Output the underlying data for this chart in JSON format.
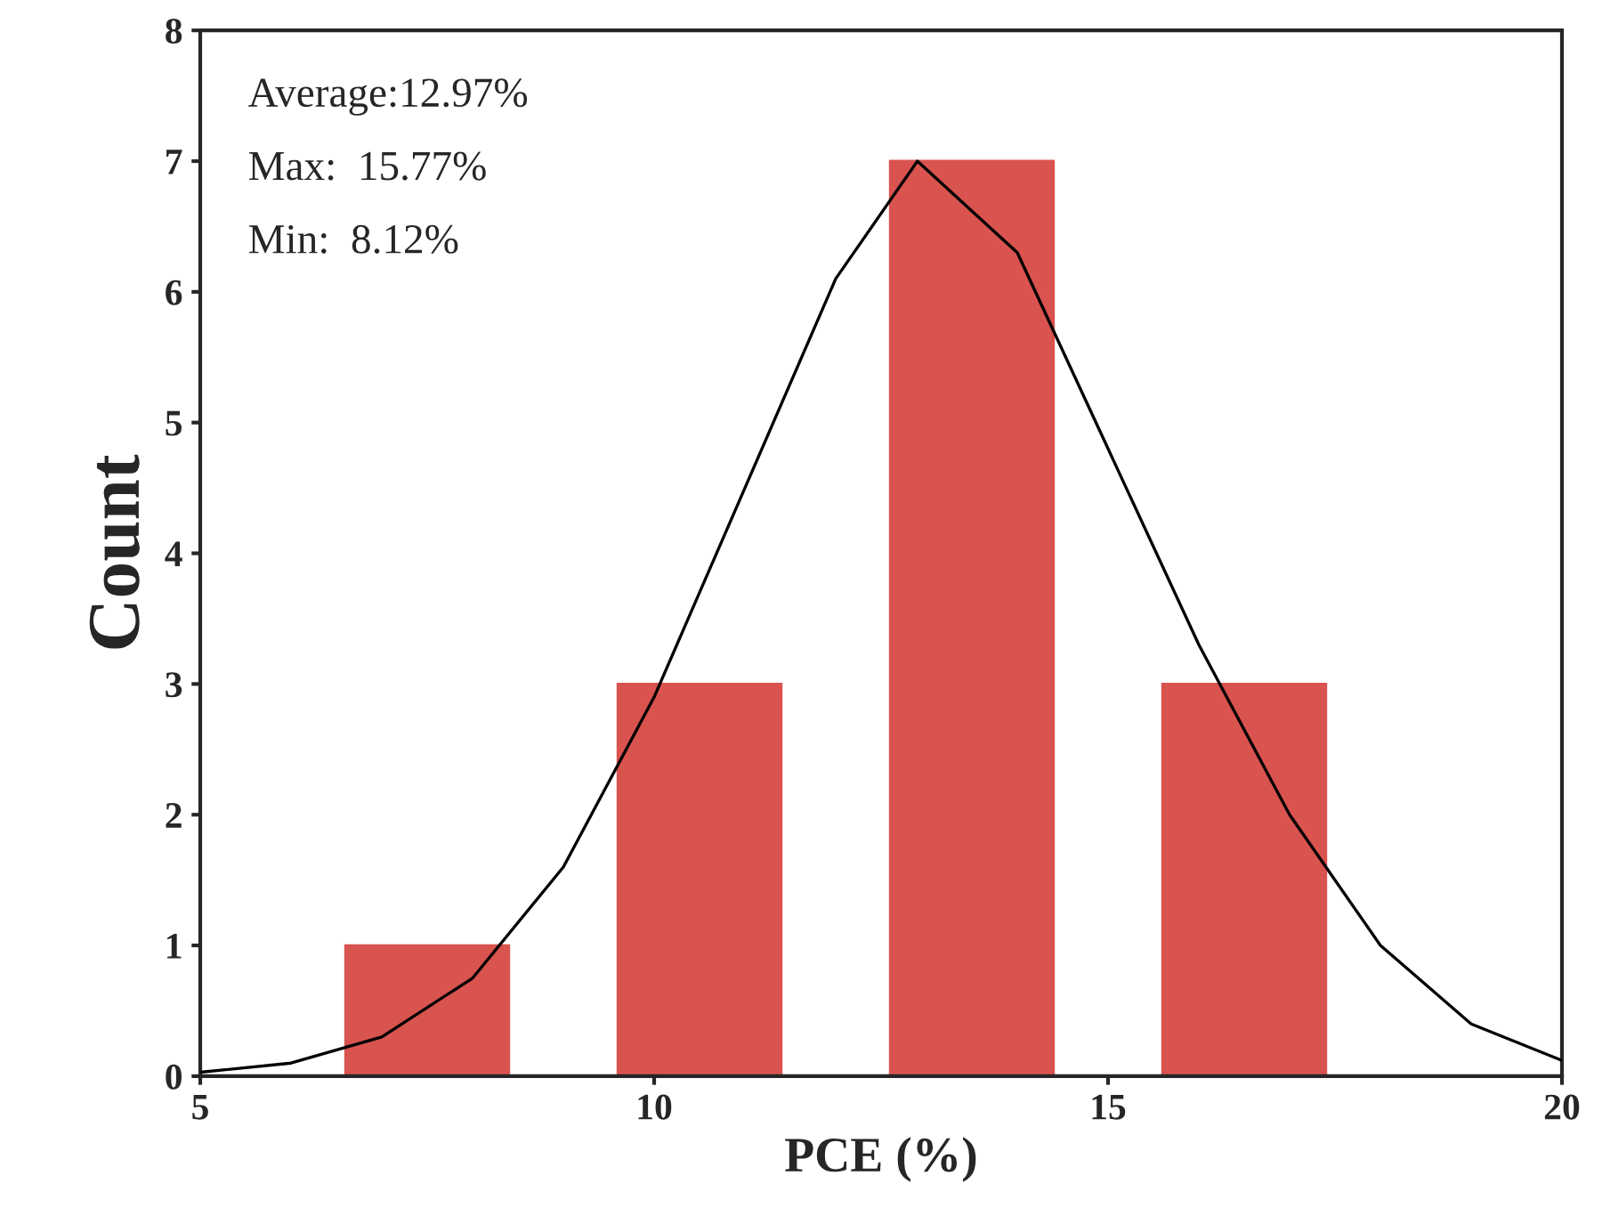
{
  "chart_data": {
    "type": "bar",
    "xlabel": "PCE (%)",
    "ylabel": "Count",
    "xlim": [
      5,
      20
    ],
    "xticks": [
      5,
      10,
      15,
      20
    ],
    "ylim": [
      0,
      8
    ],
    "yticks": [
      0,
      1,
      2,
      3,
      4,
      5,
      6,
      7,
      8
    ],
    "grid": false,
    "legend": false,
    "series": [
      {
        "color": "#d9534f",
        "x": [
          7.5,
          10.5,
          13.5,
          16.5
        ],
        "values": [
          1,
          3,
          7,
          3
        ]
      },
      {
        "type": "line",
        "color": "#000000",
        "x": [
          5,
          6,
          7,
          8,
          9,
          10,
          11,
          12,
          12.9,
          14,
          15,
          16,
          17,
          18,
          19,
          20
        ],
        "values": [
          0.03,
          0.1,
          0.3,
          0.75,
          1.6,
          2.9,
          4.5,
          6.1,
          7.0,
          6.3,
          4.8,
          3.3,
          2.0,
          1.0,
          0.4,
          0.12
        ]
      }
    ],
    "annotations": [
      "Average:12.97%",
      "Max:  15.77%",
      "Min:  8.12%"
    ]
  }
}
